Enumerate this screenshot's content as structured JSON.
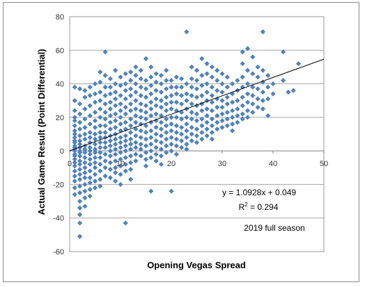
{
  "chart_data": {
    "type": "scatter",
    "xlabel": "Opening Vegas Spread",
    "ylabel": "Actual Game Result (Point Differential)",
    "xlim": [
      0,
      50
    ],
    "ylim": [
      -60,
      80
    ],
    "xticks": [
      "0",
      "10",
      "20",
      "30",
      "40",
      "50"
    ],
    "yticks": [
      "-60",
      "-40",
      "-20",
      "0",
      "20",
      "40",
      "60",
      "80"
    ],
    "grid": "horizontal",
    "marker_color": "#4f81bd",
    "trendline": {
      "slope": 1.0928,
      "intercept": 0.049,
      "color": "#000000"
    },
    "annotations": {
      "equation": "y = 1.0928x + 0.049",
      "r2_prefix": "R",
      "r2_sup": "2",
      "r2_suffix": " = 0.294",
      "season": "2019 full season"
    },
    "points": [
      [
        1,
        38
      ],
      [
        1,
        30
      ],
      [
        1,
        24
      ],
      [
        1,
        20
      ],
      [
        1,
        18
      ],
      [
        1,
        15
      ],
      [
        1,
        12
      ],
      [
        1,
        10
      ],
      [
        1,
        8
      ],
      [
        1,
        6
      ],
      [
        1,
        5
      ],
      [
        1,
        3
      ],
      [
        1,
        2
      ],
      [
        1,
        1
      ],
      [
        1,
        0
      ],
      [
        1,
        -2
      ],
      [
        1,
        -3
      ],
      [
        1,
        -5
      ],
      [
        1,
        -7
      ],
      [
        1,
        -9
      ],
      [
        1,
        -12
      ],
      [
        1,
        -15
      ],
      [
        1,
        -18
      ],
      [
        1,
        -22
      ],
      [
        1,
        -26
      ],
      [
        2,
        37
      ],
      [
        2,
        28
      ],
      [
        2,
        22
      ],
      [
        2,
        17
      ],
      [
        2,
        13
      ],
      [
        2,
        9
      ],
      [
        2,
        6
      ],
      [
        2,
        4
      ],
      [
        2,
        2
      ],
      [
        2,
        0
      ],
      [
        2,
        -1
      ],
      [
        2,
        -3
      ],
      [
        2,
        -6
      ],
      [
        2,
        -8
      ],
      [
        2,
        -11
      ],
      [
        2,
        -14
      ],
      [
        2,
        -17
      ],
      [
        2,
        -21
      ],
      [
        2,
        -25
      ],
      [
        2,
        -30
      ],
      [
        2,
        -34
      ],
      [
        2,
        -38
      ],
      [
        2,
        -43
      ],
      [
        2,
        -51
      ],
      [
        3,
        36
      ],
      [
        3,
        32
      ],
      [
        3,
        25
      ],
      [
        3,
        19
      ],
      [
        3,
        14
      ],
      [
        3,
        10
      ],
      [
        3,
        7
      ],
      [
        3,
        3
      ],
      [
        3,
        1
      ],
      [
        3,
        -1
      ],
      [
        3,
        -4
      ],
      [
        3,
        -7
      ],
      [
        3,
        -10
      ],
      [
        3,
        -13
      ],
      [
        3,
        -16
      ],
      [
        3,
        -20
      ],
      [
        3,
        -24
      ],
      [
        3,
        -28
      ],
      [
        3,
        -33
      ],
      [
        4,
        38
      ],
      [
        4,
        33
      ],
      [
        4,
        27
      ],
      [
        4,
        21
      ],
      [
        4,
        16
      ],
      [
        4,
        11
      ],
      [
        4,
        8
      ],
      [
        4,
        5
      ],
      [
        4,
        2
      ],
      [
        4,
        0
      ],
      [
        4,
        -2
      ],
      [
        4,
        -5
      ],
      [
        4,
        -8
      ],
      [
        4,
        -12
      ],
      [
        4,
        -16
      ],
      [
        4,
        -19
      ],
      [
        4,
        -23
      ],
      [
        4,
        -27
      ],
      [
        5,
        40
      ],
      [
        5,
        34
      ],
      [
        5,
        29
      ],
      [
        5,
        23
      ],
      [
        5,
        18
      ],
      [
        5,
        14
      ],
      [
        5,
        10
      ],
      [
        5,
        7
      ],
      [
        5,
        4
      ],
      [
        5,
        1
      ],
      [
        5,
        -1
      ],
      [
        5,
        -4
      ],
      [
        5,
        -7
      ],
      [
        5,
        -10
      ],
      [
        5,
        -14
      ],
      [
        5,
        -18
      ],
      [
        5,
        -22
      ],
      [
        6,
        47
      ],
      [
        6,
        41
      ],
      [
        6,
        35
      ],
      [
        6,
        30
      ],
      [
        6,
        25
      ],
      [
        6,
        20
      ],
      [
        6,
        15
      ],
      [
        6,
        11
      ],
      [
        6,
        8
      ],
      [
        6,
        5
      ],
      [
        6,
        2
      ],
      [
        6,
        -1
      ],
      [
        6,
        -4
      ],
      [
        6,
        -8
      ],
      [
        6,
        -12
      ],
      [
        6,
        -17
      ],
      [
        6,
        -21
      ],
      [
        7,
        59
      ],
      [
        7,
        45
      ],
      [
        7,
        38
      ],
      [
        7,
        33
      ],
      [
        7,
        28
      ],
      [
        7,
        23
      ],
      [
        7,
        19
      ],
      [
        7,
        15
      ],
      [
        7,
        11
      ],
      [
        7,
        8
      ],
      [
        7,
        5
      ],
      [
        7,
        2
      ],
      [
        7,
        -2
      ],
      [
        7,
        -6
      ],
      [
        7,
        -10
      ],
      [
        7,
        -15
      ],
      [
        8,
        43
      ],
      [
        8,
        38
      ],
      [
        8,
        34
      ],
      [
        8,
        29
      ],
      [
        8,
        25
      ],
      [
        8,
        21
      ],
      [
        8,
        17
      ],
      [
        8,
        13
      ],
      [
        8,
        9
      ],
      [
        8,
        6
      ],
      [
        8,
        3
      ],
      [
        8,
        0
      ],
      [
        8,
        -3
      ],
      [
        8,
        -7
      ],
      [
        8,
        -11
      ],
      [
        8,
        -16
      ],
      [
        9,
        48
      ],
      [
        9,
        40
      ],
      [
        9,
        35
      ],
      [
        9,
        31
      ],
      [
        9,
        27
      ],
      [
        9,
        22
      ],
      [
        9,
        18
      ],
      [
        9,
        14
      ],
      [
        9,
        10
      ],
      [
        9,
        7
      ],
      [
        9,
        4
      ],
      [
        9,
        1
      ],
      [
        9,
        -2
      ],
      [
        9,
        -6
      ],
      [
        9,
        -10
      ],
      [
        9,
        -13
      ],
      [
        9,
        -18
      ],
      [
        10,
        44
      ],
      [
        10,
        39
      ],
      [
        10,
        33
      ],
      [
        10,
        28
      ],
      [
        10,
        24
      ],
      [
        10,
        20
      ],
      [
        10,
        16
      ],
      [
        10,
        12
      ],
      [
        10,
        8
      ],
      [
        10,
        5
      ],
      [
        10,
        2
      ],
      [
        10,
        -1
      ],
      [
        10,
        -5
      ],
      [
        10,
        -9
      ],
      [
        10,
        -14
      ],
      [
        10,
        -20
      ],
      [
        11,
        46
      ],
      [
        11,
        40
      ],
      [
        11,
        36
      ],
      [
        11,
        31
      ],
      [
        11,
        26
      ],
      [
        11,
        22
      ],
      [
        11,
        17
      ],
      [
        11,
        13
      ],
      [
        11,
        9
      ],
      [
        11,
        6
      ],
      [
        11,
        3
      ],
      [
        11,
        0
      ],
      [
        11,
        -4
      ],
      [
        11,
        -8
      ],
      [
        11,
        -12
      ],
      [
        11,
        -43
      ],
      [
        12,
        47
      ],
      [
        12,
        42
      ],
      [
        12,
        37
      ],
      [
        12,
        33
      ],
      [
        12,
        28
      ],
      [
        12,
        24
      ],
      [
        12,
        19
      ],
      [
        12,
        15
      ],
      [
        12,
        11
      ],
      [
        12,
        7
      ],
      [
        12,
        4
      ],
      [
        12,
        1
      ],
      [
        12,
        -3
      ],
      [
        12,
        -7
      ],
      [
        12,
        -11
      ],
      [
        12,
        -17
      ],
      [
        13,
        50
      ],
      [
        13,
        45
      ],
      [
        13,
        40
      ],
      [
        13,
        35
      ],
      [
        13,
        30
      ],
      [
        13,
        25
      ],
      [
        13,
        21
      ],
      [
        13,
        17
      ],
      [
        13,
        13
      ],
      [
        13,
        9
      ],
      [
        13,
        5
      ],
      [
        13,
        2
      ],
      [
        13,
        -2
      ],
      [
        13,
        -6
      ],
      [
        14,
        48
      ],
      [
        14,
        43
      ],
      [
        14,
        38
      ],
      [
        14,
        33
      ],
      [
        14,
        28
      ],
      [
        14,
        24
      ],
      [
        14,
        20
      ],
      [
        14,
        16
      ],
      [
        14,
        12
      ],
      [
        14,
        8
      ],
      [
        14,
        4
      ],
      [
        14,
        1
      ],
      [
        14,
        -3
      ],
      [
        15,
        55
      ],
      [
        15,
        42
      ],
      [
        15,
        37
      ],
      [
        15,
        32
      ],
      [
        15,
        27
      ],
      [
        15,
        23
      ],
      [
        15,
        19
      ],
      [
        15,
        15
      ],
      [
        15,
        11
      ],
      [
        15,
        7
      ],
      [
        15,
        3
      ],
      [
        15,
        -1
      ],
      [
        15,
        -5
      ],
      [
        15,
        -9
      ],
      [
        16,
        50
      ],
      [
        16,
        44
      ],
      [
        16,
        39
      ],
      [
        16,
        34
      ],
      [
        16,
        29
      ],
      [
        16,
        25
      ],
      [
        16,
        21
      ],
      [
        16,
        17
      ],
      [
        16,
        12
      ],
      [
        16,
        8
      ],
      [
        16,
        4
      ],
      [
        16,
        0
      ],
      [
        16,
        -4
      ],
      [
        16,
        -24
      ],
      [
        17,
        46
      ],
      [
        17,
        41
      ],
      [
        17,
        36
      ],
      [
        17,
        31
      ],
      [
        17,
        27
      ],
      [
        17,
        22
      ],
      [
        17,
        18
      ],
      [
        17,
        14
      ],
      [
        17,
        10
      ],
      [
        17,
        6
      ],
      [
        17,
        2
      ],
      [
        17,
        -2
      ],
      [
        17,
        -6
      ],
      [
        18,
        45
      ],
      [
        18,
        40
      ],
      [
        18,
        35
      ],
      [
        18,
        30
      ],
      [
        18,
        26
      ],
      [
        18,
        21
      ],
      [
        18,
        17
      ],
      [
        18,
        13
      ],
      [
        18,
        9
      ],
      [
        18,
        5
      ],
      [
        18,
        1
      ],
      [
        18,
        -3
      ],
      [
        18,
        -8
      ],
      [
        19,
        48
      ],
      [
        19,
        42
      ],
      [
        19,
        37
      ],
      [
        19,
        32
      ],
      [
        19,
        28
      ],
      [
        19,
        24
      ],
      [
        19,
        19
      ],
      [
        19,
        15
      ],
      [
        19,
        11
      ],
      [
        19,
        7
      ],
      [
        19,
        3
      ],
      [
        19,
        -1
      ],
      [
        20,
        42
      ],
      [
        20,
        38
      ],
      [
        20,
        33
      ],
      [
        20,
        29
      ],
      [
        20,
        25
      ],
      [
        20,
        20
      ],
      [
        20,
        16
      ],
      [
        20,
        12
      ],
      [
        20,
        8
      ],
      [
        20,
        4
      ],
      [
        20,
        0
      ],
      [
        20,
        -24
      ],
      [
        21,
        44
      ],
      [
        21,
        38
      ],
      [
        21,
        34
      ],
      [
        21,
        29
      ],
      [
        21,
        24
      ],
      [
        21,
        20
      ],
      [
        21,
        15
      ],
      [
        21,
        11
      ],
      [
        21,
        7
      ],
      [
        21,
        3
      ],
      [
        21,
        -2
      ],
      [
        22,
        43
      ],
      [
        22,
        38
      ],
      [
        22,
        33
      ],
      [
        22,
        28
      ],
      [
        22,
        23
      ],
      [
        22,
        19
      ],
      [
        22,
        14
      ],
      [
        22,
        10
      ],
      [
        22,
        6
      ],
      [
        22,
        2
      ],
      [
        23,
        71
      ],
      [
        23,
        40
      ],
      [
        23,
        34
      ],
      [
        23,
        30
      ],
      [
        23,
        25
      ],
      [
        23,
        20
      ],
      [
        23,
        16
      ],
      [
        23,
        12
      ],
      [
        23,
        8
      ],
      [
        23,
        4
      ],
      [
        23,
        1
      ],
      [
        24,
        50
      ],
      [
        24,
        43
      ],
      [
        24,
        38
      ],
      [
        24,
        33
      ],
      [
        24,
        28
      ],
      [
        24,
        23
      ],
      [
        24,
        19
      ],
      [
        24,
        14
      ],
      [
        24,
        10
      ],
      [
        24,
        6
      ],
      [
        25,
        48
      ],
      [
        25,
        42
      ],
      [
        25,
        37
      ],
      [
        25,
        32
      ],
      [
        25,
        27
      ],
      [
        25,
        22
      ],
      [
        25,
        18
      ],
      [
        25,
        13
      ],
      [
        25,
        9
      ],
      [
        25,
        5
      ],
      [
        26,
        55
      ],
      [
        26,
        45
      ],
      [
        26,
        39
      ],
      [
        26,
        33
      ],
      [
        26,
        28
      ],
      [
        26,
        24
      ],
      [
        26,
        19
      ],
      [
        26,
        15
      ],
      [
        26,
        11
      ],
      [
        26,
        7
      ],
      [
        27,
        52
      ],
      [
        27,
        46
      ],
      [
        27,
        40
      ],
      [
        27,
        35
      ],
      [
        27,
        30
      ],
      [
        27,
        25
      ],
      [
        27,
        21
      ],
      [
        27,
        17
      ],
      [
        27,
        13
      ],
      [
        27,
        9
      ],
      [
        28,
        50
      ],
      [
        28,
        44
      ],
      [
        28,
        38
      ],
      [
        28,
        33
      ],
      [
        28,
        29
      ],
      [
        28,
        24
      ],
      [
        28,
        19
      ],
      [
        28,
        15
      ],
      [
        28,
        11
      ],
      [
        28,
        7
      ],
      [
        29,
        48
      ],
      [
        29,
        42
      ],
      [
        29,
        36
      ],
      [
        29,
        31
      ],
      [
        29,
        26
      ],
      [
        29,
        21
      ],
      [
        29,
        17
      ],
      [
        29,
        13
      ],
      [
        30,
        46
      ],
      [
        30,
        40
      ],
      [
        30,
        35
      ],
      [
        30,
        30
      ],
      [
        30,
        26
      ],
      [
        30,
        22
      ],
      [
        30,
        18
      ],
      [
        30,
        14
      ],
      [
        31,
        44
      ],
      [
        31,
        38
      ],
      [
        31,
        32
      ],
      [
        31,
        28
      ],
      [
        31,
        23
      ],
      [
        31,
        19
      ],
      [
        31,
        15
      ],
      [
        32,
        40
      ],
      [
        32,
        34
      ],
      [
        32,
        29
      ],
      [
        32,
        24
      ],
      [
        32,
        20
      ],
      [
        32,
        16
      ],
      [
        32,
        12
      ],
      [
        33,
        42
      ],
      [
        33,
        36
      ],
      [
        33,
        30
      ],
      [
        33,
        25
      ],
      [
        33,
        21
      ],
      [
        33,
        17
      ],
      [
        34,
        59
      ],
      [
        34,
        52
      ],
      [
        34,
        44
      ],
      [
        34,
        38
      ],
      [
        34,
        32
      ],
      [
        34,
        27
      ],
      [
        34,
        22
      ],
      [
        34,
        19
      ],
      [
        35,
        61
      ],
      [
        35,
        48
      ],
      [
        35,
        40
      ],
      [
        35,
        34
      ],
      [
        35,
        29
      ],
      [
        35,
        24
      ],
      [
        35,
        20
      ],
      [
        36,
        56
      ],
      [
        36,
        46
      ],
      [
        36,
        38
      ],
      [
        36,
        33
      ],
      [
        36,
        28
      ],
      [
        36,
        23
      ],
      [
        37,
        50
      ],
      [
        37,
        44
      ],
      [
        37,
        37
      ],
      [
        37,
        31
      ],
      [
        37,
        26
      ],
      [
        38,
        71
      ],
      [
        38,
        48
      ],
      [
        38,
        41
      ],
      [
        38,
        35
      ],
      [
        38,
        30
      ],
      [
        38,
        25
      ],
      [
        39,
        45
      ],
      [
        39,
        38
      ],
      [
        39,
        31
      ],
      [
        39,
        21
      ],
      [
        40,
        40
      ],
      [
        40,
        34
      ],
      [
        42,
        59
      ],
      [
        42,
        42
      ],
      [
        43,
        35
      ],
      [
        44,
        36
      ],
      [
        45,
        52
      ]
    ]
  }
}
